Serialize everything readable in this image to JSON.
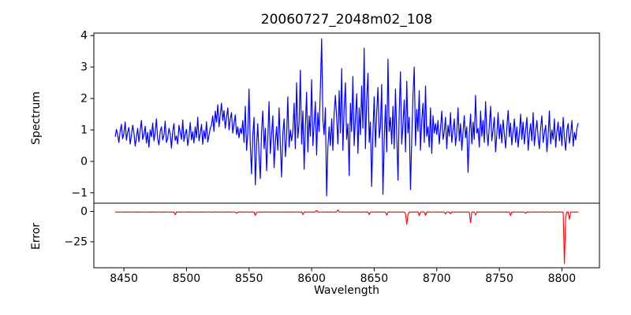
{
  "colors": {
    "spectrum_line": "#0000ff",
    "error_line": "#ff0000",
    "axis": "#000000",
    "background": "#ffffff"
  },
  "chart_data": [
    {
      "type": "line",
      "title": "20060727_2048m02_108",
      "ylabel": "Spectrum",
      "legend": null,
      "grid": false,
      "color": "#0000ff",
      "xlim": [
        8426,
        8830
      ],
      "ylim": [
        -1.33,
        4.08
      ],
      "yticks": [
        -1,
        0,
        1,
        2,
        3,
        4
      ],
      "x_start": 8443,
      "x_step": 1,
      "values": [
        0.78,
        1.02,
        0.85,
        0.6,
        0.95,
        1.18,
        0.72,
        0.88,
        1.25,
        0.67,
        0.93,
        1.08,
        0.55,
        0.82,
        1.15,
        0.9,
        0.48,
        0.75,
        1.05,
        0.62,
        0.98,
        1.3,
        0.7,
        0.85,
        1.12,
        0.58,
        0.92,
        0.45,
        1.0,
        0.78,
        1.22,
        0.65,
        0.9,
        1.35,
        0.72,
        0.52,
        0.95,
        1.1,
        0.68,
        0.84,
        1.28,
        0.6,
        0.73,
        1.05,
        0.88,
        0.42,
        0.96,
        1.2,
        0.66,
        0.81,
        0.55,
        1.15,
        0.92,
        0.7,
        1.32,
        0.63,
        0.87,
        1.02,
        0.5,
        0.79,
        1.24,
        0.68,
        0.94,
        0.58,
        1.1,
        0.76,
        1.4,
        0.65,
        0.89,
        1.18,
        0.54,
        0.98,
        0.72,
        1.26,
        0.61,
        0.83,
        1.06,
        1.15,
        1.45,
        0.95,
        1.6,
        1.25,
        1.8,
        1.1,
        1.5,
        1.85,
        1.3,
        1.62,
        1.05,
        1.4,
        1.7,
        1.0,
        1.35,
        1.55,
        0.9,
        1.2,
        1.48,
        0.85,
        1.1,
        0.75,
        1.05,
        0.88,
        1.3,
        0.6,
        1.75,
        0.35,
        0.9,
        2.3,
        0.55,
        -0.4,
        0.85,
        1.4,
        -0.75,
        0.5,
        1.2,
        0.2,
        -0.55,
        0.95,
        1.6,
        0.4,
        1.05,
        -0.3,
        0.7,
        1.9,
        0.25,
        0.85,
        1.45,
        -0.2,
        0.6,
        1.1,
        0.35,
        1.7,
        0.55,
        -0.5,
        0.9,
        1.35,
        0.15,
        0.75,
        2.05,
        0.45,
        1.0,
        0.65,
        0.95,
        1.85,
        0.4,
        2.5,
        0.75,
        1.2,
        2.9,
        0.55,
        1.6,
        -0.25,
        1.05,
        2.2,
        0.3,
        1.45,
        0.8,
        2.6,
        0.5,
        1.15,
        1.9,
        0.2,
        1.55,
        0.95,
        2.35,
        3.9,
        1.3,
        0.85,
        1.7,
        -1.1,
        0.45,
        1.1,
        0.5,
        1.35,
        0.35,
        1.5,
        2.1,
        1.4,
        0.55,
        2.25,
        0.9,
        2.95,
        0.35,
        1.65,
        2.5,
        0.7,
        1.2,
        -0.45,
        1.85,
        0.95,
        2.7,
        0.5,
        1.35,
        2.15,
        0.25,
        1.7,
        0.85,
        2.4,
        1.05,
        3.6,
        0.4,
        1.95,
        2.8,
        0.6,
        1.25,
        -0.8,
        0.9,
        2.05,
        0.45,
        1.55,
        2.35,
        0.75,
        1.1,
        2.45,
        -1.05,
        0.65,
        1.8,
        0.3,
        3.25,
        0.95,
        1.4,
        0.55,
        1.75,
        0.4,
        2.3,
        0.85,
        -0.6,
        1.5,
        2.85,
        0.55,
        1.15,
        1.95,
        0.3,
        2.55,
        0.9,
        1.4,
        -0.9,
        0.7,
        2.1,
        3.0,
        0.5,
        1.65,
        0.95,
        2.25,
        0.35,
        1.3,
        1.85,
        0.6,
        2.4,
        0.8,
        1.1,
        0.45,
        1.7,
        0.25,
        1.45,
        0.9,
        1.2,
        0.85,
        1.3,
        0.55,
        1.05,
        1.6,
        0.7,
        0.95,
        1.4,
        0.4,
        1.15,
        0.8,
        1.55,
        0.6,
        1.0,
        1.35,
        0.5,
        0.9,
        1.7,
        0.65,
        1.2,
        0.35,
        0.95,
        1.45,
        0.75,
        1.1,
        -0.35,
        0.85,
        1.5,
        0.55,
        1.25,
        0.7,
        2.1,
        0.9,
        1.05,
        0.45,
        1.6,
        0.8,
        1.3,
        0.6,
        1.9,
        0.95,
        0.5,
        1.15,
        1.75,
        0.65,
        1.0,
        1.4,
        0.3,
        0.85,
        1.55,
        0.72,
        1.18,
        0.58,
        1.32,
        0.88,
        0.42,
        1.08,
        1.62,
        0.78,
        1.22,
        0.52,
        0.95,
        1.35,
        0.6,
        1.1,
        0.45,
        0.9,
        1.5,
        0.7,
        1.25,
        0.55,
        1.0,
        1.4,
        0.35,
        0.85,
        1.2,
        0.65,
        1.55,
        0.5,
        0.95,
        1.3,
        0.75,
        0.4,
        1.05,
        1.45,
        0.6,
        0.9,
        1.15,
        0.3,
        0.8,
        1.6,
        0.55,
        1.0,
        0.7,
        1.35,
        0.45,
        0.95,
        1.25,
        0.65,
        1.1,
        0.5,
        1.4,
        0.75,
        0.35,
        0.98,
        1.2,
        0.58,
        0.88,
        1.3,
        0.48,
        0.92,
        0.68,
        1.05,
        1.22
      ]
    },
    {
      "type": "line",
      "ylabel": "Error",
      "xlabel": "Wavelength",
      "legend": null,
      "grid": false,
      "color": "#ff0000",
      "xlim": [
        8426,
        8830
      ],
      "ylim": [
        -46.4,
        6.8
      ],
      "yticks": [
        0,
        -25
      ],
      "xticks": [
        8450,
        8500,
        8550,
        8600,
        8650,
        8700,
        8750,
        8800
      ],
      "x_start": 8443,
      "x_step": 1,
      "values": [
        -0.45,
        -0.55,
        -0.4,
        -0.6,
        -0.5,
        -0.35,
        -0.58,
        -0.48,
        -0.62,
        -0.42,
        -0.45,
        -0.55,
        -0.4,
        -0.6,
        -0.5,
        -0.35,
        -0.58,
        -0.48,
        -0.62,
        -0.42,
        -0.45,
        -0.55,
        -0.4,
        -0.6,
        -0.5,
        -0.35,
        -0.58,
        -0.48,
        -0.62,
        -0.42,
        -0.45,
        -0.55,
        -0.4,
        -0.6,
        -0.5,
        -0.35,
        -0.58,
        -0.48,
        -0.62,
        -0.42,
        -0.45,
        -0.55,
        -0.4,
        -0.6,
        -0.5,
        -0.35,
        -0.58,
        -0.48,
        -2.8,
        -0.42,
        -0.45,
        -0.55,
        -0.4,
        -0.6,
        -0.5,
        -0.35,
        -0.58,
        -0.48,
        -0.62,
        -0.42,
        -0.45,
        -0.55,
        -0.4,
        -0.6,
        -0.5,
        -0.35,
        -0.58,
        -0.48,
        -0.62,
        -0.42,
        -0.45,
        -0.55,
        -0.4,
        -0.6,
        -0.5,
        -0.35,
        -0.58,
        -0.48,
        -0.62,
        -0.42,
        -0.45,
        -0.55,
        -0.4,
        -0.6,
        -0.5,
        -0.35,
        -0.58,
        -0.48,
        -0.62,
        -0.42,
        -0.45,
        -0.55,
        -0.4,
        -0.6,
        -0.5,
        -0.35,
        -0.58,
        -1.6,
        -0.62,
        -0.42,
        -0.45,
        -0.55,
        -0.4,
        -0.6,
        -0.5,
        -0.35,
        -0.58,
        -0.48,
        -0.62,
        -0.42,
        -0.45,
        -0.55,
        -3.4,
        -0.6,
        -0.5,
        -0.35,
        -0.58,
        -0.48,
        -0.62,
        -0.42,
        -0.45,
        -0.55,
        -0.4,
        -0.6,
        -0.5,
        -0.35,
        -0.58,
        -0.48,
        -0.62,
        -0.42,
        -0.45,
        -0.55,
        -0.4,
        -0.6,
        -0.5,
        -0.35,
        -0.58,
        -0.48,
        -0.62,
        -0.42,
        -0.45,
        -0.55,
        -0.4,
        -0.6,
        -0.5,
        -0.35,
        -0.58,
        -0.48,
        -0.62,
        -0.42,
        -2.6,
        -0.55,
        -0.4,
        -0.6,
        -0.5,
        -0.35,
        -0.58,
        -0.48,
        -0.62,
        -0.42,
        -0.45,
        0.9,
        -0.4,
        -0.6,
        -0.5,
        -0.35,
        -0.58,
        -0.48,
        -0.62,
        -0.42,
        -0.45,
        -0.55,
        -0.4,
        -0.6,
        -0.5,
        -0.35,
        -0.58,
        -0.48,
        1.2,
        -0.42,
        -0.45,
        -0.55,
        -0.4,
        -0.6,
        -0.5,
        -0.35,
        -0.58,
        -0.48,
        -0.62,
        -0.42,
        -0.45,
        -0.55,
        -0.4,
        -0.6,
        -0.5,
        -0.35,
        -0.58,
        -0.48,
        -0.62,
        -0.42,
        -0.45,
        -0.55,
        -0.4,
        -2.6,
        -0.5,
        -0.35,
        -0.58,
        -0.48,
        -0.62,
        -0.42,
        -0.45,
        -0.55,
        -0.4,
        -0.6,
        -0.5,
        -0.35,
        -0.58,
        -3.0,
        -0.62,
        -0.42,
        -0.45,
        -0.55,
        -0.4,
        -0.6,
        -0.5,
        -0.35,
        -0.58,
        -0.48,
        -0.62,
        -0.42,
        -0.45,
        -0.55,
        -2.0,
        -10.5,
        -3.0,
        -0.35,
        -0.58,
        -0.48,
        -0.62,
        -0.42,
        -0.45,
        -0.55,
        -0.4,
        -3.6,
        -0.5,
        -0.35,
        -0.58,
        -0.48,
        -3.4,
        -0.42,
        -0.45,
        -0.55,
        -0.4,
        -0.6,
        -0.5,
        -0.35,
        -0.58,
        -0.48,
        -0.62,
        -0.42,
        -0.45,
        -0.55,
        -0.4,
        -0.6,
        -2.2,
        -0.35,
        -0.58,
        -0.48,
        -2.0,
        -0.42,
        -0.45,
        -0.55,
        -0.4,
        -0.6,
        -0.5,
        -0.35,
        -0.58,
        -0.48,
        -0.62,
        -0.42,
        -0.45,
        -0.55,
        -0.4,
        -0.6,
        -9.2,
        -0.35,
        -0.58,
        -0.48,
        -3.0,
        -0.42,
        -0.45,
        -0.55,
        -0.4,
        -0.6,
        -0.5,
        -0.35,
        -0.58,
        -0.48,
        -0.62,
        -0.42,
        -0.45,
        -0.55,
        -0.4,
        -0.6,
        -0.5,
        -0.35,
        -0.58,
        -0.48,
        -0.62,
        -0.42,
        -0.45,
        -0.55,
        -0.4,
        -0.6,
        -0.5,
        -0.35,
        -3.6,
        -0.48,
        -0.62,
        -0.42,
        -0.45,
        -0.55,
        -0.4,
        -0.6,
        -0.5,
        -0.35,
        -0.58,
        -0.48,
        -1.6,
        -0.42,
        -0.45,
        -0.55,
        -0.4,
        -0.6,
        -0.5,
        -0.35,
        -0.58,
        -0.48,
        -0.62,
        -0.42,
        -0.45,
        -0.55,
        -0.4,
        -0.6,
        -0.5,
        -0.35,
        -0.58,
        -0.48,
        -0.62,
        -0.42,
        -0.45,
        -0.55,
        -0.4,
        -0.6,
        -0.5,
        -0.35,
        -0.58,
        -0.48,
        -0.62,
        -43.0,
        -5.0,
        -0.55,
        -0.4,
        -6.5,
        -0.5,
        -0.35,
        -0.58,
        -0.48,
        -0.62,
        -0.42,
        -0.45
      ]
    }
  ]
}
